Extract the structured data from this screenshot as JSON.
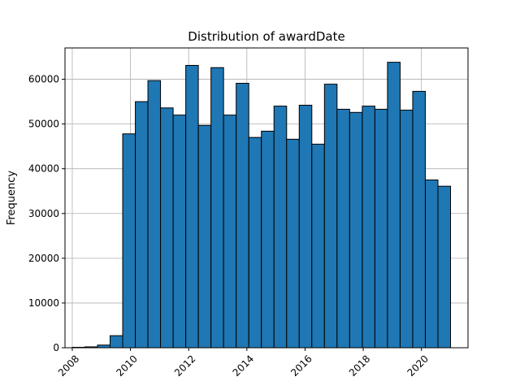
{
  "chart_data": {
    "type": "bar",
    "title": "Distribution of awardDate",
    "xlabel": "awardDate",
    "ylabel": "Frequency",
    "xlim": [
      2007.75,
      2021.6
    ],
    "ylim": [
      0,
      67000
    ],
    "grid": true,
    "bar_color": "#1f77b4",
    "edge_color": "#000000",
    "grid_color": "#b0b0b0",
    "x_ticks": [
      2008,
      2010,
      2012,
      2014,
      2016,
      2018,
      2020
    ],
    "x_tick_labels": [
      "2008",
      "2010",
      "2012",
      "2014",
      "2016",
      "2018",
      "2020"
    ],
    "y_ticks": [
      0,
      10000,
      20000,
      30000,
      40000,
      50000,
      60000
    ],
    "y_tick_labels": [
      "0",
      "10000",
      "20000",
      "30000",
      "40000",
      "50000",
      "60000"
    ],
    "bin_edges": [
      2008.0,
      2008.433,
      2008.867,
      2009.3,
      2009.733,
      2010.167,
      2010.6,
      2011.033,
      2011.467,
      2011.9,
      2012.333,
      2012.767,
      2013.2,
      2013.633,
      2014.067,
      2014.5,
      2014.933,
      2015.367,
      2015.8,
      2016.233,
      2016.667,
      2017.1,
      2017.533,
      2017.967,
      2018.4,
      2018.833,
      2019.267,
      2019.7,
      2020.133,
      2020.567,
      2021.0
    ],
    "values": [
      100,
      200,
      600,
      2700,
      47800,
      55000,
      59700,
      53600,
      52000,
      63100,
      49700,
      62600,
      52000,
      59100,
      47000,
      48400,
      54000,
      46600,
      54200,
      45500,
      58900,
      53300,
      52600,
      54000,
      53300,
      63800,
      53100,
      57300,
      37500,
      36100
    ]
  }
}
